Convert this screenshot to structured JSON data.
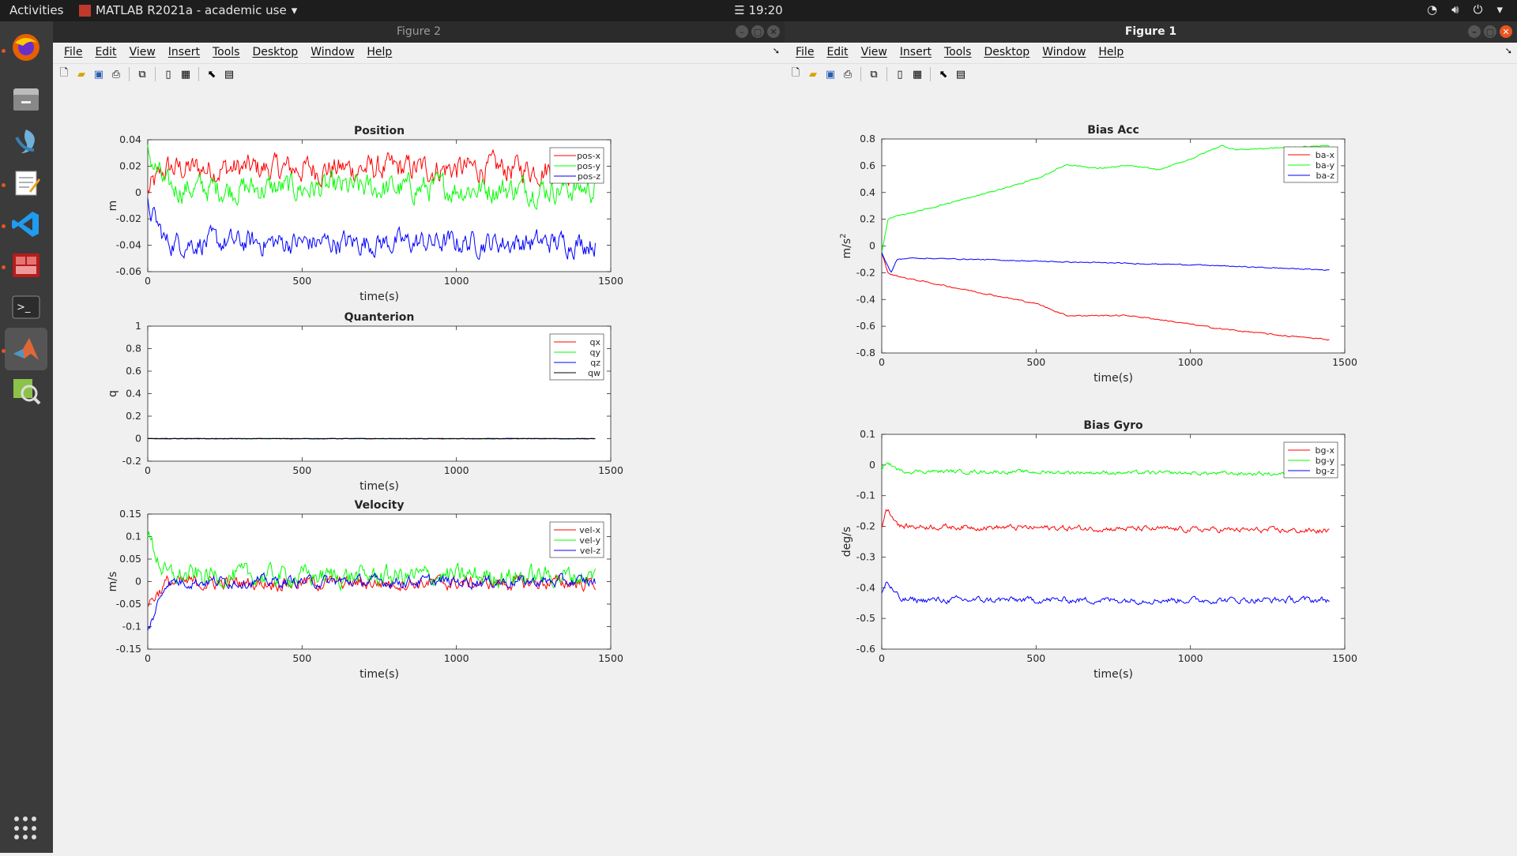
{
  "topbar": {
    "activities": "Activities",
    "app_title": "MATLAB R2021a - academic use",
    "clock": "19:20"
  },
  "dock": {
    "items": [
      "firefox-icon",
      "files-icon",
      "ide-icon",
      "text-editor-icon",
      "vscode-icon",
      "matlab-red-icon",
      "terminal-icon",
      "matlab-icon",
      "image-viewer-icon"
    ]
  },
  "windows": {
    "figure2_title": "Figure 2",
    "figure1_title": "Figure 1",
    "menus": [
      "File",
      "Edit",
      "View",
      "Insert",
      "Tools",
      "Desktop",
      "Window",
      "Help"
    ]
  },
  "chart_data": [
    {
      "id": "position",
      "type": "line",
      "title": "Position",
      "xlabel": "time(s)",
      "ylabel": "m",
      "xlim": [
        0,
        1500
      ],
      "ylim": [
        -0.06,
        0.04
      ],
      "xticks": [
        0,
        500,
        1000,
        1500
      ],
      "yticks": [
        -0.06,
        -0.04,
        -0.02,
        0,
        0.02,
        0.04
      ],
      "ytick_labels": [
        "-0.06",
        "-0.04",
        "-0.02",
        "0",
        "0.02",
        "0.04"
      ],
      "legend": "top-right",
      "x_end": 1450,
      "series": [
        {
          "name": "pos-x",
          "color": "#ff0000",
          "mean": 0.018,
          "noise": 0.008,
          "start": 0.0
        },
        {
          "name": "pos-y",
          "color": "#00ff00",
          "mean": 0.003,
          "noise": 0.008,
          "start": 0.03
        },
        {
          "name": "pos-z",
          "color": "#0000ff",
          "mean": -0.038,
          "noise": 0.007,
          "start": -0.01
        }
      ]
    },
    {
      "id": "quaternion",
      "type": "line",
      "title": "Quanterion",
      "xlabel": "time(s)",
      "ylabel": "q",
      "xlim": [
        0,
        1500
      ],
      "ylim": [
        -0.2,
        1
      ],
      "xticks": [
        0,
        500,
        1000,
        1500
      ],
      "yticks": [
        -0.2,
        0,
        0.2,
        0.4,
        0.6,
        0.8,
        1
      ],
      "ytick_labels": [
        "-0.2",
        "0",
        "0.2",
        "0.4",
        "0.6",
        "0.8",
        "1"
      ],
      "legend": "top-right",
      "x_end": 1450,
      "series": [
        {
          "name": "qx",
          "color": "#ff0000",
          "mean": 0,
          "noise": 0.002,
          "start": 0
        },
        {
          "name": "qy",
          "color": "#00ff00",
          "mean": 0,
          "noise": 0.002,
          "start": 0
        },
        {
          "name": "qz",
          "color": "#0000ff",
          "mean": 0,
          "noise": 0.002,
          "start": 0
        },
        {
          "name": "qw",
          "color": "#000000",
          "mean": 0,
          "noise": 0.001,
          "start": 0
        }
      ]
    },
    {
      "id": "velocity",
      "type": "line",
      "title": "Velocity",
      "xlabel": "time(s)",
      "ylabel": "m/s",
      "xlim": [
        0,
        1500
      ],
      "ylim": [
        -0.15,
        0.15
      ],
      "xticks": [
        0,
        500,
        1000,
        1500
      ],
      "yticks": [
        -0.15,
        -0.1,
        -0.05,
        0,
        0.05,
        0.1,
        0.15
      ],
      "ytick_labels": [
        "-0.15",
        "-0.1",
        "-0.05",
        "0",
        "0.05",
        "0.1",
        "0.15"
      ],
      "legend": "top-right",
      "x_end": 1450,
      "series": [
        {
          "name": "vel-x",
          "color": "#ff0000",
          "mean": -0.003,
          "noise": 0.012,
          "start": -0.05
        },
        {
          "name": "vel-y",
          "color": "#00ff00",
          "mean": 0.012,
          "noise": 0.018,
          "start": 0.1
        },
        {
          "name": "vel-z",
          "color": "#0000ff",
          "mean": 0.0,
          "noise": 0.01,
          "start": -0.11
        }
      ]
    },
    {
      "id": "bias-acc",
      "type": "line",
      "title": "Bias Acc",
      "xlabel": "time(s)",
      "ylabel": "m/s2",
      "xlim": [
        0,
        1500
      ],
      "ylim": [
        -0.8,
        0.8
      ],
      "xticks": [
        0,
        500,
        1000,
        1500
      ],
      "yticks": [
        -0.8,
        -0.6,
        -0.4,
        -0.2,
        0,
        0.2,
        0.4,
        0.6,
        0.8
      ],
      "ytick_labels": [
        "-0.8",
        "-0.6",
        "-0.4",
        "-0.2",
        "0",
        "0.2",
        "0.4",
        "0.6",
        "0.8"
      ],
      "legend": "top-right",
      "x_end": 1450,
      "series": [
        {
          "name": "ba-x",
          "color": "#ff0000",
          "noise": 0.004,
          "points": [
            [
              0,
              -0.05
            ],
            [
              20,
              -0.2
            ],
            [
              40,
              -0.22
            ],
            [
              100,
              -0.25
            ],
            [
              300,
              -0.34
            ],
            [
              500,
              -0.43
            ],
            [
              600,
              -0.52
            ],
            [
              800,
              -0.52
            ],
            [
              900,
              -0.55
            ],
            [
              1100,
              -0.62
            ],
            [
              1300,
              -0.67
            ],
            [
              1450,
              -0.7
            ]
          ]
        },
        {
          "name": "ba-y",
          "color": "#00ff00",
          "noise": 0.004,
          "points": [
            [
              0,
              -0.05
            ],
            [
              20,
              0.2
            ],
            [
              40,
              0.22
            ],
            [
              100,
              0.25
            ],
            [
              300,
              0.37
            ],
            [
              500,
              0.5
            ],
            [
              600,
              0.61
            ],
            [
              700,
              0.58
            ],
            [
              800,
              0.6
            ],
            [
              900,
              0.57
            ],
            [
              1000,
              0.65
            ],
            [
              1100,
              0.75
            ],
            [
              1150,
              0.72
            ],
            [
              1450,
              0.75
            ]
          ]
        },
        {
          "name": "ba-z",
          "color": "#0000ff",
          "noise": 0.003,
          "points": [
            [
              0,
              -0.05
            ],
            [
              30,
              -0.2
            ],
            [
              50,
              -0.1
            ],
            [
              100,
              -0.09
            ],
            [
              300,
              -0.1
            ],
            [
              600,
              -0.12
            ],
            [
              1000,
              -0.14
            ],
            [
              1450,
              -0.18
            ]
          ]
        }
      ]
    },
    {
      "id": "bias-gyro",
      "type": "line",
      "title": "Bias Gyro",
      "xlabel": "time(s)",
      "ylabel": "deg/s",
      "xlim": [
        0,
        1500
      ],
      "ylim": [
        -0.6,
        0.1
      ],
      "xticks": [
        0,
        500,
        1000,
        1500
      ],
      "yticks": [
        -0.6,
        -0.5,
        -0.4,
        -0.3,
        -0.2,
        -0.1,
        0,
        0.1
      ],
      "ytick_labels": [
        "-0.6",
        "-0.5",
        "-0.4",
        "-0.3",
        "-0.2",
        "-0.1",
        "0",
        "0.1"
      ],
      "legend": "top-right",
      "x_end": 1450,
      "series": [
        {
          "name": "bg-x",
          "color": "#ff0000",
          "mean": -0.205,
          "noise": 0.007,
          "start": -0.15,
          "points": [
            [
              0,
              -0.2
            ],
            [
              15,
              -0.14
            ],
            [
              60,
              -0.2
            ],
            [
              1450,
              -0.215
            ]
          ]
        },
        {
          "name": "bg-y",
          "color": "#00ff00",
          "mean": -0.03,
          "noise": 0.005,
          "start": 0.0,
          "points": [
            [
              0,
              -0.02
            ],
            [
              15,
              0.01
            ],
            [
              60,
              -0.02
            ],
            [
              1450,
              -0.03
            ]
          ]
        },
        {
          "name": "bg-z",
          "color": "#0000ff",
          "mean": -0.445,
          "noise": 0.008,
          "start": -0.4,
          "points": [
            [
              0,
              -0.42
            ],
            [
              15,
              -0.38
            ],
            [
              60,
              -0.44
            ],
            [
              1450,
              -0.44
            ]
          ]
        }
      ]
    }
  ]
}
